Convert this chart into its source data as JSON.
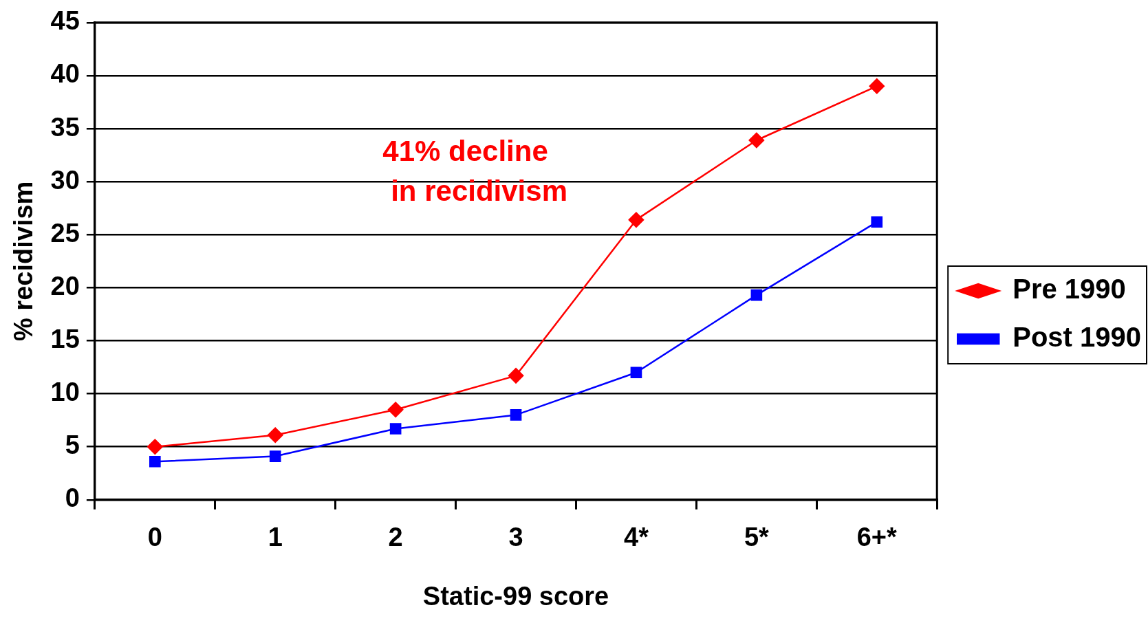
{
  "chart_data": {
    "type": "line",
    "xlabel": "Static-99 score",
    "ylabel": "% recidivism",
    "categories": [
      "0",
      "1",
      "2",
      "3",
      "4*",
      "5*",
      "6+*"
    ],
    "series": [
      {
        "name": "Pre 1990",
        "color": "#ff0000",
        "marker": "diamond",
        "values": [
          5.0,
          6.1,
          8.5,
          11.7,
          26.4,
          33.9,
          39.0
        ]
      },
      {
        "name": "Post 1990",
        "color": "#0000ff",
        "marker": "square",
        "values": [
          3.6,
          4.1,
          6.7,
          8.0,
          12.0,
          19.3,
          26.2
        ]
      }
    ],
    "ylim": [
      0,
      45
    ],
    "yticks": [
      0,
      5,
      10,
      15,
      20,
      25,
      30,
      35,
      40,
      45
    ],
    "grid": "y",
    "legend": "right",
    "line_style": "solid",
    "annotations": [
      "41% decline in recidivism"
    ]
  }
}
